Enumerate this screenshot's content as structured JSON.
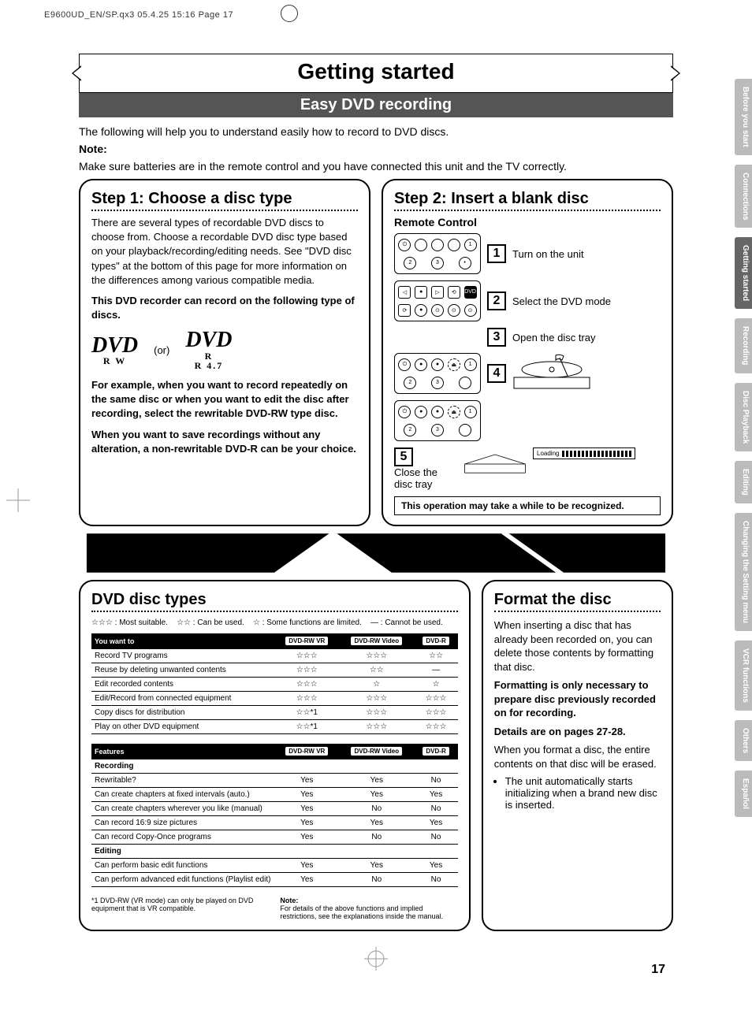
{
  "meta": {
    "header": "E9600UD_EN/SP.qx3   05.4.25 15:16   Page 17"
  },
  "title": "Getting started",
  "subtitle": "Easy DVD recording",
  "intro": {
    "line1": "The following will help you to understand easily how to record to DVD discs.",
    "note_label": "Note:",
    "line2": "Make sure batteries are in the remote control and you have connected this unit and the TV correctly."
  },
  "step1": {
    "title": "Step 1: Choose a disc type",
    "p1": "There are several types of recordable DVD discs to choose from. Choose a recordable DVD disc type based on your playback/recording/editing needs. See \"DVD disc types\" at the bottom of this page for more information on the differences among various compatible media.",
    "p2": "This DVD recorder can record on the following type of discs.",
    "logo1_sub": "R W",
    "or": "(or)",
    "logo2_sub1": "R",
    "logo2_sub2": "R 4.7",
    "p3": "For example, when you want to record repeatedly on the same disc or when you want to edit the disc after recording, select the rewritable DVD-RW type disc.",
    "p4": "When you want to save recordings without any alteration, a non-rewritable DVD-R can be your choice."
  },
  "step2": {
    "title": "Step 2: Insert a blank disc",
    "remote": "Remote Control",
    "s1": "Turn on the unit",
    "s2": "Select the DVD mode",
    "s3": "Open the disc tray",
    "s5": "Close the disc tray",
    "loading": "Loading",
    "note": "This operation may take a while to be recognized."
  },
  "disc_types": {
    "title": "DVD disc types",
    "legend": {
      "most": "☆☆☆ : Most suitable.",
      "can": "☆☆ : Can be used.",
      "limited": "☆ : Some functions are limited.",
      "cannot": "— : Cannot be used."
    },
    "col1": "You want to",
    "hdr1": "DVD-RW VR",
    "hdr2": "DVD-RW Video",
    "hdr3": "DVD-R",
    "rows1": [
      {
        "f": "Record TV programs",
        "a": "☆☆☆",
        "b": "☆☆☆",
        "c": "☆☆"
      },
      {
        "f": "Reuse by deleting unwanted contents",
        "a": "☆☆☆",
        "b": "☆☆",
        "c": "—"
      },
      {
        "f": "Edit recorded contents",
        "a": "☆☆☆",
        "b": "☆",
        "c": "☆"
      },
      {
        "f": "Edit/Record from connected equipment",
        "a": "☆☆☆",
        "b": "☆☆☆",
        "c": "☆☆☆"
      },
      {
        "f": "Copy discs for distribution",
        "a": "☆☆*1",
        "b": "☆☆☆",
        "c": "☆☆☆"
      },
      {
        "f": "Play on other DVD equipment",
        "a": "☆☆*1",
        "b": "☆☆☆",
        "c": "☆☆☆"
      }
    ],
    "col2": "Features",
    "sec_rec": "Recording",
    "sec_edit": "Editing",
    "rows2": [
      {
        "s": "rec",
        "f": "Rewritable?",
        "a": "Yes",
        "b": "Yes",
        "c": "No"
      },
      {
        "s": "rec",
        "f": "Can create chapters at fixed intervals (auto.)",
        "a": "Yes",
        "b": "Yes",
        "c": "Yes"
      },
      {
        "s": "rec",
        "f": "Can create chapters wherever you like (manual)",
        "a": "Yes",
        "b": "No",
        "c": "No"
      },
      {
        "s": "rec",
        "f": "Can record 16:9 size pictures",
        "a": "Yes",
        "b": "Yes",
        "c": "Yes"
      },
      {
        "s": "rec",
        "f": "Can record Copy-Once programs",
        "a": "Yes",
        "b": "No",
        "c": "No"
      },
      {
        "s": "edit",
        "f": "Can perform basic edit functions",
        "a": "Yes",
        "b": "Yes",
        "c": "Yes"
      },
      {
        "s": "edit",
        "f": "Can perform advanced edit functions (Playlist edit)",
        "a": "Yes",
        "b": "No",
        "c": "No"
      }
    ],
    "fn1": "*1  DVD-RW (VR mode) can only be played on DVD equipment that is VR compatible.",
    "fn2_label": "Note:",
    "fn2": "For details of the above functions and implied restrictions, see the explanations inside the manual."
  },
  "format": {
    "title": "Format the disc",
    "p1": "When inserting a disc that has already been recorded on, you can delete those contents by formatting that disc.",
    "p2": "Formatting is only necessary to prepare disc previously recorded on for recording.",
    "p3": "Details are on pages 27-28.",
    "p4": "When you format a disc, the entire contents on that disc will be erased.",
    "b1": "The unit automatically starts initializing when a brand new disc is inserted."
  },
  "tabs": [
    "Before you start",
    "Connections",
    "Getting started",
    "Recording",
    "Disc Playback",
    "Editing",
    "Changing the Setting menu",
    "VCR functions",
    "Others",
    "Español"
  ],
  "page_num": "17"
}
